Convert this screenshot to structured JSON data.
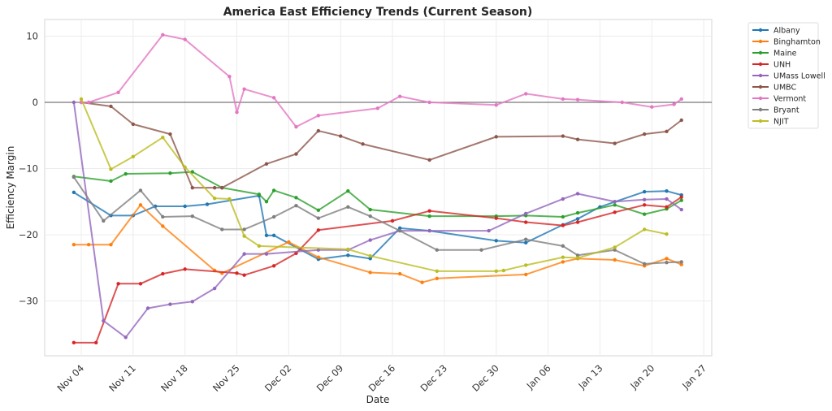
{
  "chart_data": {
    "type": "line",
    "title": "America East Efficiency Trends (Current Season)",
    "xlabel": "Date",
    "ylabel": "Efficiency Margin",
    "x_ticks": [
      "Nov 04",
      "Nov 11",
      "Nov 18",
      "Nov 25",
      "Dec 02",
      "Dec 09",
      "Dec 16",
      "Dec 23",
      "Dec 30",
      "Jan 06",
      "Jan 13",
      "Jan 20",
      "Jan 27"
    ],
    "x_tick_days": [
      0,
      7,
      14,
      21,
      28,
      35,
      42,
      49,
      56,
      63,
      70,
      77,
      84
    ],
    "x_origin_date": "Nov 04",
    "x_unit": "days since Nov 04",
    "xlim": [
      -5,
      85
    ],
    "y_ticks": [
      10,
      0,
      -10,
      -20,
      -30
    ],
    "ylim": [
      -38.5,
      12.5
    ],
    "grid": true,
    "reference_line": 0,
    "legend_position": "outside-top-right",
    "series": [
      {
        "name": "Albany",
        "color": "#1f77b4",
        "points": [
          [
            -1,
            -13.6
          ],
          [
            4,
            -17.1
          ],
          [
            7,
            -17.1
          ],
          [
            10,
            -15.7
          ],
          [
            14,
            -15.7
          ],
          [
            17,
            -15.4
          ],
          [
            24,
            -14.1
          ],
          [
            25,
            -20.1
          ],
          [
            26,
            -20.1
          ],
          [
            32,
            -23.7
          ],
          [
            36,
            -23.1
          ],
          [
            39,
            -23.6
          ],
          [
            43,
            -19.0
          ],
          [
            47,
            -19.4
          ],
          [
            56,
            -20.9
          ],
          [
            60,
            -21.2
          ],
          [
            65,
            -18.5
          ],
          [
            67,
            -17.6
          ],
          [
            70,
            -15.8
          ],
          [
            76,
            -13.5
          ],
          [
            79,
            -13.4
          ],
          [
            81,
            -14.0
          ]
        ]
      },
      {
        "name": "Binghamton",
        "color": "#ff7f0e",
        "points": [
          [
            -1,
            -21.5
          ],
          [
            1,
            -21.5
          ],
          [
            4,
            -21.5
          ],
          [
            8,
            -15.5
          ],
          [
            11,
            -18.7
          ],
          [
            18,
            -25.4
          ],
          [
            19,
            -25.8
          ],
          [
            28,
            -21.1
          ],
          [
            32,
            -23.4
          ],
          [
            39,
            -25.7
          ],
          [
            43,
            -25.9
          ],
          [
            46,
            -27.2
          ],
          [
            48,
            -26.6
          ],
          [
            60,
            -26.0
          ],
          [
            65,
            -24.1
          ],
          [
            67,
            -23.6
          ],
          [
            72,
            -23.8
          ],
          [
            76,
            -24.7
          ],
          [
            79,
            -23.6
          ],
          [
            81,
            -24.5
          ]
        ]
      },
      {
        "name": "Maine",
        "color": "#2ca02c",
        "points": [
          [
            -1,
            -11.2
          ],
          [
            4,
            -11.9
          ],
          [
            6,
            -10.8
          ],
          [
            12,
            -10.7
          ],
          [
            15,
            -10.5
          ],
          [
            19,
            -12.9
          ],
          [
            24,
            -13.9
          ],
          [
            25,
            -15.0
          ],
          [
            26,
            -13.3
          ],
          [
            29,
            -14.4
          ],
          [
            32,
            -16.3
          ],
          [
            36,
            -13.4
          ],
          [
            39,
            -16.2
          ],
          [
            47,
            -17.2
          ],
          [
            56,
            -17.2
          ],
          [
            60,
            -17.1
          ],
          [
            65,
            -17.3
          ],
          [
            67,
            -16.7
          ],
          [
            72,
            -15.5
          ],
          [
            76,
            -16.9
          ],
          [
            79,
            -16.1
          ],
          [
            81,
            -14.8
          ]
        ]
      },
      {
        "name": "UNH",
        "color": "#d62728",
        "points": [
          [
            -1,
            -36.3
          ],
          [
            2,
            -36.3
          ],
          [
            5,
            -27.4
          ],
          [
            8,
            -27.4
          ],
          [
            11,
            -25.9
          ],
          [
            14,
            -25.2
          ],
          [
            21,
            -25.8
          ],
          [
            22,
            -26.1
          ],
          [
            26,
            -24.7
          ],
          [
            29,
            -22.8
          ],
          [
            32,
            -19.3
          ],
          [
            42,
            -17.9
          ],
          [
            47,
            -16.4
          ],
          [
            56,
            -17.5
          ],
          [
            60,
            -18.1
          ],
          [
            65,
            -18.6
          ],
          [
            67,
            -18.1
          ],
          [
            72,
            -16.6
          ],
          [
            76,
            -15.5
          ],
          [
            79,
            -15.8
          ],
          [
            81,
            -14.3
          ]
        ]
      },
      {
        "name": "UMass Lowell",
        "color": "#9467bd",
        "points": [
          [
            -1,
            0.0
          ],
          [
            3,
            -33.0
          ],
          [
            6,
            -35.5
          ],
          [
            9,
            -31.1
          ],
          [
            12,
            -30.5
          ],
          [
            15,
            -30.1
          ],
          [
            18,
            -28.1
          ],
          [
            22,
            -22.9
          ],
          [
            25,
            -22.9
          ],
          [
            32,
            -22.3
          ],
          [
            36,
            -22.3
          ],
          [
            39,
            -20.8
          ],
          [
            43,
            -19.4
          ],
          [
            47,
            -19.4
          ],
          [
            55,
            -19.4
          ],
          [
            60,
            -16.8
          ],
          [
            65,
            -14.6
          ],
          [
            67,
            -13.8
          ],
          [
            72,
            -15.0
          ],
          [
            76,
            -14.7
          ],
          [
            79,
            -14.6
          ],
          [
            81,
            -16.2
          ]
        ]
      },
      {
        "name": "UMBC",
        "color": "#8c564b",
        "points": [
          [
            0,
            0.0
          ],
          [
            4,
            -0.6
          ],
          [
            7,
            -3.3
          ],
          [
            12,
            -4.8
          ],
          [
            15,
            -12.9
          ],
          [
            18,
            -12.9
          ],
          [
            19,
            -12.9
          ],
          [
            25,
            -9.3
          ],
          [
            29,
            -7.8
          ],
          [
            32,
            -4.3
          ],
          [
            35,
            -5.1
          ],
          [
            38,
            -6.3
          ],
          [
            47,
            -8.7
          ],
          [
            56,
            -5.2
          ],
          [
            65,
            -5.1
          ],
          [
            67,
            -5.6
          ],
          [
            72,
            -6.2
          ],
          [
            76,
            -4.8
          ],
          [
            79,
            -4.4
          ],
          [
            81,
            -2.7
          ]
        ]
      },
      {
        "name": "Vermont",
        "color": "#e377c2",
        "points": [
          [
            0,
            0.0
          ],
          [
            1,
            0.0
          ],
          [
            5,
            1.5
          ],
          [
            11,
            10.2
          ],
          [
            14,
            9.5
          ],
          [
            20,
            3.9
          ],
          [
            21,
            -1.5
          ],
          [
            22,
            2.0
          ],
          [
            26,
            0.7
          ],
          [
            29,
            -3.7
          ],
          [
            32,
            -2.0
          ],
          [
            40,
            -0.9
          ],
          [
            43,
            0.9
          ],
          [
            47,
            0.0
          ],
          [
            56,
            -0.4
          ],
          [
            60,
            1.3
          ],
          [
            65,
            0.5
          ],
          [
            67,
            0.4
          ],
          [
            73,
            0.0
          ],
          [
            77,
            -0.7
          ],
          [
            80,
            -0.3
          ],
          [
            81,
            0.5
          ]
        ]
      },
      {
        "name": "Bryant",
        "color": "#7f7f7f",
        "points": [
          [
            -1,
            -11.3
          ],
          [
            3,
            -17.9
          ],
          [
            8,
            -13.3
          ],
          [
            11,
            -17.3
          ],
          [
            15,
            -17.2
          ],
          [
            19,
            -19.2
          ],
          [
            22,
            -19.2
          ],
          [
            26,
            -17.3
          ],
          [
            29,
            -15.6
          ],
          [
            32,
            -17.5
          ],
          [
            36,
            -15.8
          ],
          [
            39,
            -17.2
          ],
          [
            43,
            -19.4
          ],
          [
            48,
            -22.3
          ],
          [
            54,
            -22.3
          ],
          [
            60,
            -20.7
          ],
          [
            65,
            -21.7
          ],
          [
            67,
            -23.1
          ],
          [
            72,
            -22.3
          ],
          [
            76,
            -24.4
          ],
          [
            79,
            -24.2
          ],
          [
            81,
            -24.1
          ]
        ]
      },
      {
        "name": "NJIT",
        "color": "#bcbd22",
        "points": [
          [
            0,
            0.5
          ],
          [
            4,
            -10.1
          ],
          [
            7,
            -8.2
          ],
          [
            11,
            -5.3
          ],
          [
            14,
            -9.8
          ],
          [
            18,
            -14.5
          ],
          [
            20,
            -14.6
          ],
          [
            22,
            -20.2
          ],
          [
            24,
            -21.7
          ],
          [
            36,
            -22.2
          ],
          [
            39,
            -23.2
          ],
          [
            48,
            -25.5
          ],
          [
            56,
            -25.5
          ],
          [
            57,
            -25.4
          ],
          [
            60,
            -24.6
          ],
          [
            65,
            -23.4
          ],
          [
            67,
            -23.5
          ],
          [
            72,
            -21.9
          ],
          [
            76,
            -19.2
          ],
          [
            79,
            -19.9
          ]
        ]
      }
    ]
  }
}
